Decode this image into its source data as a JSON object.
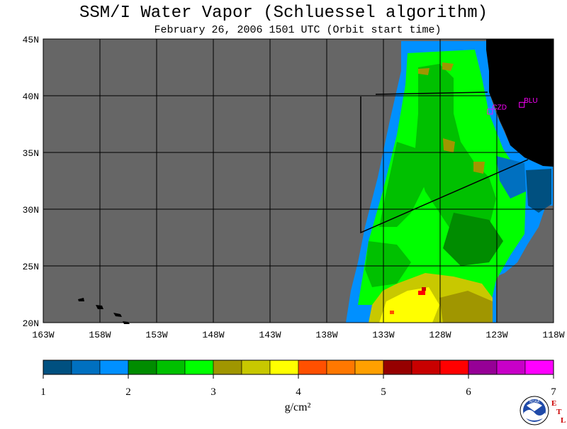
{
  "title": "SSM/I Water Vapor (Schluessel algorithm)",
  "subtitle": "February 26, 2006  1501 UTC  (Orbit start time)",
  "map": {
    "lon_range": [
      -163,
      -118
    ],
    "lat_range": [
      20,
      45
    ],
    "lon_ticks": [
      {
        "value": -163,
        "label": "163W"
      },
      {
        "value": -158,
        "label": "158W"
      },
      {
        "value": -153,
        "label": "153W"
      },
      {
        "value": -148,
        "label": "148W"
      },
      {
        "value": -143,
        "label": "143W"
      },
      {
        "value": -138,
        "label": "138W"
      },
      {
        "value": -133,
        "label": "133W"
      },
      {
        "value": -128,
        "label": "128W"
      },
      {
        "value": -123,
        "label": "123W"
      },
      {
        "value": -118,
        "label": "118W"
      }
    ],
    "lat_ticks": [
      {
        "value": 20,
        "label": "20N"
      },
      {
        "value": 25,
        "label": "25N"
      },
      {
        "value": 30,
        "label": "30N"
      },
      {
        "value": 35,
        "label": "35N"
      },
      {
        "value": 40,
        "label": "40N"
      },
      {
        "value": 45,
        "label": "45N"
      }
    ],
    "stations": [
      {
        "id": "CZD",
        "label": "CZD",
        "lon": -123.6,
        "lat": 38.6
      },
      {
        "id": "BLU",
        "label": "BLU",
        "lon": -120.8,
        "lat": 39.2
      }
    ],
    "colors": {
      "no_data": "#666666",
      "land": "#000000",
      "grid": "#000000",
      "station": "#ff00ff"
    }
  },
  "colorbar": {
    "colors": [
      "#005080",
      "#0070c0",
      "#0090ff",
      "#008c00",
      "#00c000",
      "#00ff00",
      "#a09600",
      "#c8c800",
      "#ffff00",
      "#ff5000",
      "#ff7800",
      "#ffa000",
      "#960000",
      "#c80000",
      "#ff0000",
      "#960096",
      "#c800c8",
      "#ff00ff"
    ],
    "ticks": [
      "1",
      "2",
      "3",
      "4",
      "5",
      "6",
      "7"
    ],
    "units_label": "g/cm²"
  },
  "logo": {
    "text": "NOAA",
    "side_letters": [
      "E",
      "T",
      "L"
    ]
  }
}
